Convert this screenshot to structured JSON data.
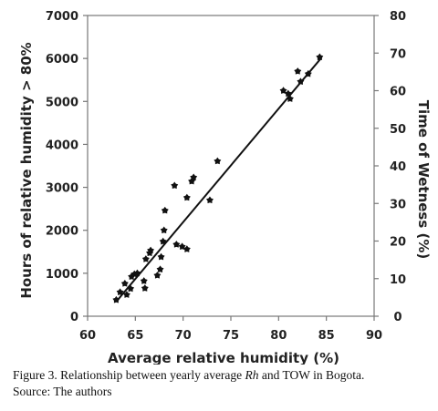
{
  "chart_data": {
    "type": "scatter",
    "xlabel": "Average relative humidity (%)",
    "ylabel": "Hours of relative humidity > 80%",
    "y2label": "Time of Wetness (%)",
    "xlim": [
      60,
      90
    ],
    "ylim": [
      0,
      7000
    ],
    "y2lim": [
      0,
      80
    ],
    "x_ticks": [
      60,
      65,
      70,
      75,
      80,
      85,
      90
    ],
    "y_ticks": [
      0,
      1000,
      2000,
      3000,
      4000,
      5000,
      6000,
      7000
    ],
    "y2_ticks": [
      0,
      10,
      20,
      30,
      40,
      50,
      60,
      70,
      80
    ],
    "grid": false,
    "marker_color": "#111111",
    "points": [
      {
        "x": 63.0,
        "y": 380
      },
      {
        "x": 63.4,
        "y": 560
      },
      {
        "x": 63.9,
        "y": 760
      },
      {
        "x": 64.1,
        "y": 500
      },
      {
        "x": 64.5,
        "y": 640
      },
      {
        "x": 64.6,
        "y": 920
      },
      {
        "x": 64.9,
        "y": 980
      },
      {
        "x": 65.2,
        "y": 1000
      },
      {
        "x": 65.9,
        "y": 820
      },
      {
        "x": 66.0,
        "y": 650
      },
      {
        "x": 66.1,
        "y": 1330
      },
      {
        "x": 66.5,
        "y": 1470
      },
      {
        "x": 66.6,
        "y": 1530
      },
      {
        "x": 67.3,
        "y": 950
      },
      {
        "x": 67.6,
        "y": 1090
      },
      {
        "x": 67.7,
        "y": 1380
      },
      {
        "x": 67.9,
        "y": 1740
      },
      {
        "x": 68.0,
        "y": 2000
      },
      {
        "x": 68.1,
        "y": 2460
      },
      {
        "x": 69.1,
        "y": 3040
      },
      {
        "x": 69.3,
        "y": 1670
      },
      {
        "x": 69.9,
        "y": 1620
      },
      {
        "x": 70.4,
        "y": 1560
      },
      {
        "x": 70.4,
        "y": 2760
      },
      {
        "x": 70.9,
        "y": 3140
      },
      {
        "x": 71.1,
        "y": 3230
      },
      {
        "x": 72.8,
        "y": 2700
      },
      {
        "x": 73.6,
        "y": 3610
      },
      {
        "x": 80.5,
        "y": 5250
      },
      {
        "x": 81.0,
        "y": 5180
      },
      {
        "x": 81.2,
        "y": 5060
      },
      {
        "x": 82.0,
        "y": 5700
      },
      {
        "x": 82.3,
        "y": 5460
      },
      {
        "x": 83.1,
        "y": 5640
      },
      {
        "x": 84.3,
        "y": 6030
      }
    ],
    "trendline": {
      "x": [
        63.0,
        84.5
      ],
      "y": [
        340,
        6020
      ]
    }
  },
  "caption": {
    "line1_pre": "Figure 3. Relationship between yearly average ",
    "line1_em": "Rh",
    "line1_post": " and TOW in Bogota.",
    "line2": "Source: The authors"
  }
}
